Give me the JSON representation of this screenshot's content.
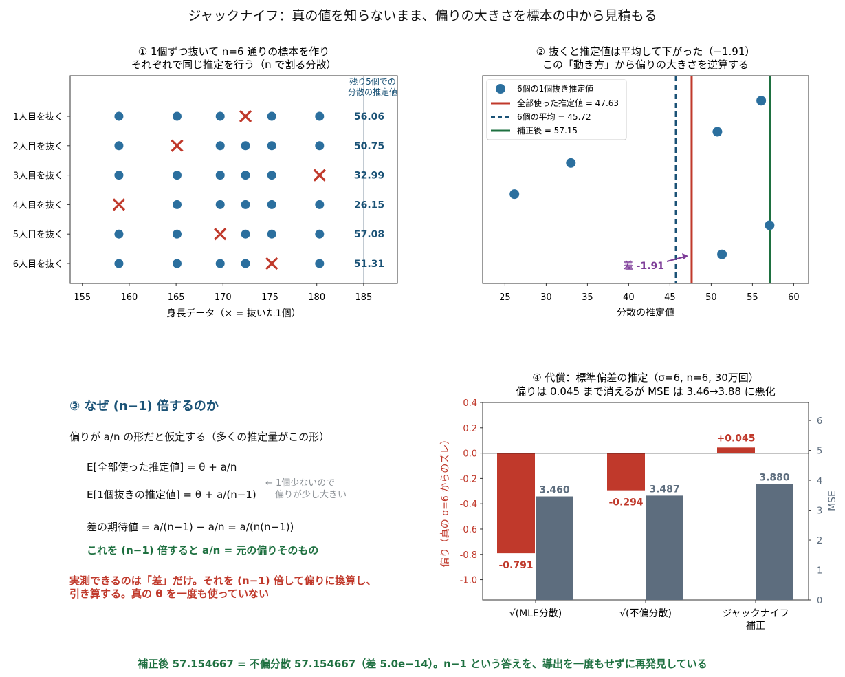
{
  "suptitle": "ジャックナイフ：真の値を知らないまま、偏りの大きさを標本の中から見積もる",
  "colors": {
    "blue": "#2b6f9e",
    "red": "#c0392b",
    "darkblue": "#1a5276",
    "green": "#1e7040",
    "purple": "#7d3c98",
    "gray": "#5d6d7e"
  },
  "panel1": {
    "title_line1": "① 1個ずつ抜いて n=6 通りの標本を作り",
    "title_line2": "それぞれで同じ推定を行う（n で割る分散）",
    "xlabel": "身長データ（× = 抜いた1個）",
    "side_header_line1": "残り5個での",
    "side_header_line2": "分散の推定値",
    "heights": [
      158.9,
      165.1,
      169.7,
      172.4,
      175.2,
      180.3
    ],
    "rows": [
      {
        "label": "1人目を抜く",
        "removed": 3,
        "value": "56.06"
      },
      {
        "label": "2人目を抜く",
        "removed": 1,
        "value": "50.75"
      },
      {
        "label": "3人目を抜く",
        "removed": 5,
        "value": "32.99"
      },
      {
        "label": "4人目を抜く",
        "removed": 0,
        "value": "26.15"
      },
      {
        "label": "5人目を抜く",
        "removed": 2,
        "value": "57.08"
      },
      {
        "label": "6人目を抜く",
        "removed": 4,
        "value": "51.31"
      }
    ],
    "xlim": [
      153.7,
      188.6
    ],
    "xticks": [
      155,
      160,
      165,
      170,
      175,
      180,
      185
    ]
  },
  "panel2": {
    "title_line1": "② 抜くと推定値は平均して下がった（−1.91）",
    "title_line2": "この「動き方」から偏りの大きさを逆算する",
    "xlabel": "分散の推定値",
    "xlim": [
      22.3,
      61.8
    ],
    "xticks": [
      25,
      30,
      35,
      40,
      45,
      50,
      55,
      60
    ],
    "points": [
      {
        "x": 56.06,
        "y": 0.12
      },
      {
        "x": 50.75,
        "y": 0.27
      },
      {
        "x": 32.99,
        "y": 0.42
      },
      {
        "x": 26.15,
        "y": 0.57
      },
      {
        "x": 57.08,
        "y": 0.72
      },
      {
        "x": 51.31,
        "y": 0.86
      }
    ],
    "full_value": 47.63,
    "mean_value": 45.72,
    "corrected_value": 57.15,
    "legend": [
      "6個の1個抜き推定値",
      "全部使った推定値 = 47.63",
      "6個の平均 = 45.72",
      "補正後 = 57.15"
    ],
    "diff_label": "差 -1.91"
  },
  "panel3": {
    "heading": "③ なぜ (n−1) 倍するのか",
    "intro": "偏りが a/n の形だと仮定する（多くの推定量がこの形）",
    "eq1": "E[全部使った推定値] = θ + a/n",
    "eq2": "E[1個抜きの推定値]  = θ + a/(n−1)",
    "note_line1": "← 1個少ないので",
    "note_line2": "偏りが少し大きい",
    "eq3": "差の期待値 = a/(n−1) − a/n = a/(n(n−1))",
    "conclusion": "これを (n−1) 倍すると  a/n  = 元の偏りそのもの",
    "summary_line1": "実測できるのは「差」だけ。それを (n−1) 倍して偏りに換算し、",
    "summary_line2": "引き算する。真の θ を一度も使っていない"
  },
  "panel4": {
    "title_line1": "④ 代償：標準偏差の推定（σ=6, n=6, 30万回）",
    "title_line2": "偏りは 0.045 まで消えるが MSE は 3.46→3.88 に悪化",
    "ylabel_left": "偏り（真の σ=6 からのズレ）",
    "ylabel_right": "MSE",
    "categories": [
      "√(MLE分散)",
      "√(不偏分散)",
      "ジャックナイフ\n補正"
    ],
    "bias": [
      -0.791,
      -0.294,
      0.045
    ],
    "bias_labels": [
      "-0.791",
      "-0.294",
      "+0.045"
    ],
    "mse": [
      3.46,
      3.487,
      3.88
    ],
    "mse_labels": [
      "3.460",
      "3.487",
      "3.880"
    ],
    "ylim_left": [
      -1.16,
      0.4
    ],
    "yticks_left": [
      "-1.0",
      "-0.8",
      "-0.6",
      "-0.4",
      "-0.2",
      "0.0",
      "0.2",
      "0.4"
    ],
    "ylim_right": [
      0,
      6.6
    ],
    "yticks_right": [
      "0",
      "1",
      "2",
      "3",
      "4",
      "5",
      "6"
    ]
  },
  "chart_data": [
    {
      "type": "scatter",
      "title": "① 1個ずつ抜いて n=6 通りの標本を作り それぞれで同じ推定を行う（n で割る分散）",
      "xlabel": "身長データ（× = 抜いた1個）",
      "categories": [
        "1人目を抜く",
        "2人目を抜く",
        "3人目を抜く",
        "4人目を抜く",
        "5人目を抜く",
        "6人目を抜く"
      ],
      "x": [
        158.9,
        165.1,
        169.7,
        172.4,
        175.2,
        180.3
      ],
      "values": [
        56.06,
        50.75,
        32.99,
        26.15,
        57.08,
        51.31
      ],
      "xlim": [
        153.7,
        188.6
      ]
    },
    {
      "type": "scatter",
      "title": "② 抜くと推定値は平均して下がった（−1.91） この「動き方」から偏りの大きさを逆算する",
      "xlabel": "分散の推定値",
      "series": [
        {
          "name": "6個の1個抜き推定値",
          "values": [
            56.06,
            50.75,
            32.99,
            26.15,
            57.08,
            51.31
          ]
        },
        {
          "name": "全部使った推定値 = 47.63",
          "values": [
            47.63
          ]
        },
        {
          "name": "6個の平均 = 45.72",
          "values": [
            45.72
          ]
        },
        {
          "name": "補正後 = 57.15",
          "values": [
            57.15
          ]
        }
      ],
      "xlim": [
        22.3,
        61.8
      ],
      "legend": "top-left"
    },
    {
      "type": "bar",
      "title": "④ 代償：標準偏差の推定（σ=6, n=6, 30万回） 偏りは 0.045 まで消えるが MSE は 3.46→3.88 に悪化",
      "categories": [
        "√(MLE分散)",
        "√(不偏分散)",
        "ジャックナイフ補正"
      ],
      "series": [
        {
          "name": "偏り（真の σ=6 からのズレ）",
          "values": [
            -0.791,
            -0.294,
            0.045
          ]
        },
        {
          "name": "MSE",
          "values": [
            3.46,
            3.487,
            3.88
          ]
        }
      ],
      "ylabel": "偏り（真の σ=6 からのズレ）",
      "ylim": [
        -1.16,
        0.4
      ],
      "y2label": "MSE",
      "y2lim": [
        0,
        6.6
      ]
    }
  ],
  "footer": "補正後 57.154667 = 不偏分散 57.154667（差 5.0e−14）。n−1 という答えを、導出を一度もせずに再発見している"
}
